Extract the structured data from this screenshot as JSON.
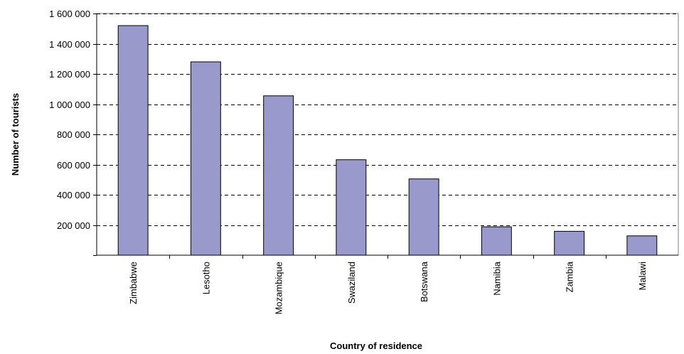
{
  "chart_data": {
    "type": "bar",
    "categories": [
      "Zimbabwe",
      "Lesotho",
      "Mozambique",
      "Swaziland",
      "Botswana",
      "Namibia",
      "Zambia",
      "Malawi"
    ],
    "values": [
      1520000,
      1280000,
      1055000,
      632000,
      505000,
      188000,
      158000,
      128000
    ],
    "xlabel": "Country of residence",
    "ylabel": "Number of tourists",
    "ylim": [
      0,
      1600000
    ],
    "yticks": [
      0,
      200000,
      400000,
      600000,
      800000,
      1000000,
      1200000,
      1400000,
      1600000
    ],
    "ytick_labels": [
      "",
      "200 000",
      "400 000",
      "600 000",
      "800 000",
      "1 000 000",
      "1 200 000",
      "1 400 000",
      "1 600 000"
    ],
    "grid": "horizontal-dashed",
    "legend": "none",
    "bar_color": "#9999cc",
    "background": "#ffffff"
  }
}
